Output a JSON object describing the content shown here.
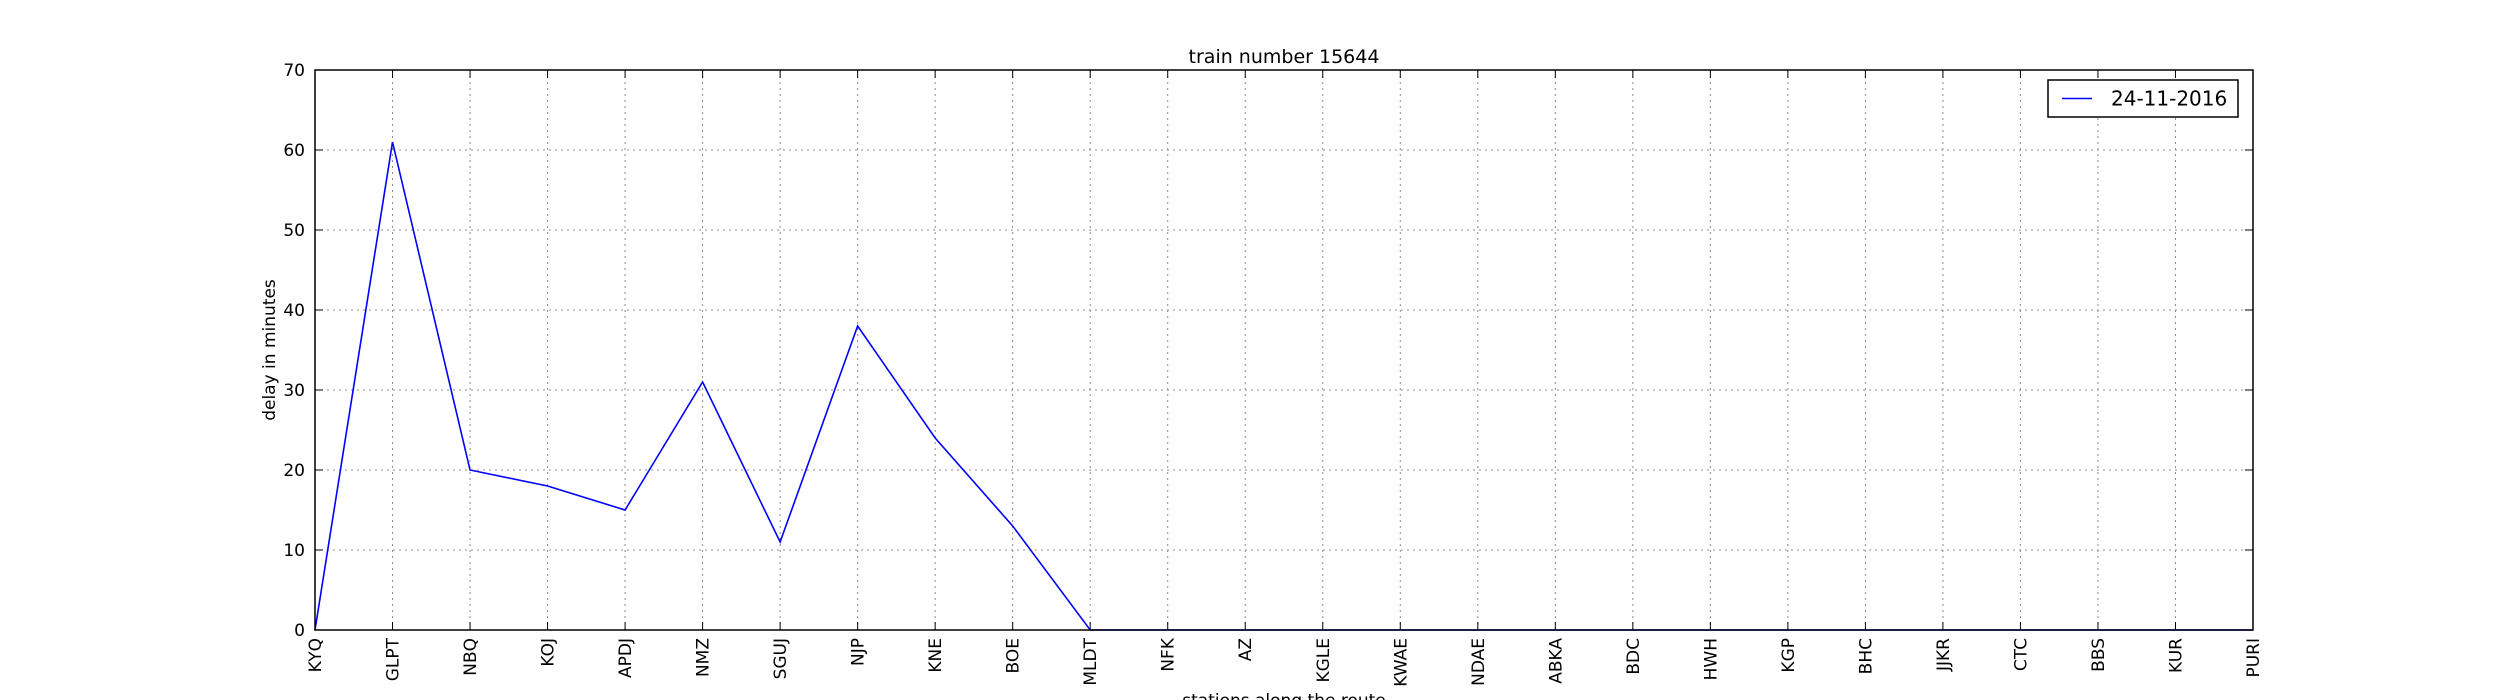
{
  "chart_data": {
    "type": "line",
    "title": "train number 15644",
    "xlabel": "stations along the route",
    "ylabel": "delay in minutes",
    "categories": [
      "KYQ",
      "GLPT",
      "NBQ",
      "KOJ",
      "APDJ",
      "NMZ",
      "SGUJ",
      "NJP",
      "KNE",
      "BOE",
      "MLDT",
      "NFK",
      "AZ",
      "KGLE",
      "KWAE",
      "NDAE",
      "ABKA",
      "BDC",
      "HWH",
      "KGP",
      "BHC",
      "JJKR",
      "CTC",
      "BBS",
      "KUR",
      "PURI"
    ],
    "series": [
      {
        "name": "24-11-2016",
        "color": "#0000ff",
        "values": [
          0,
          61,
          20,
          18,
          15,
          31,
          11,
          38,
          24,
          13,
          0,
          0,
          0,
          0,
          0,
          0,
          0,
          0,
          0,
          0,
          0,
          0,
          0,
          0,
          0,
          0
        ]
      }
    ],
    "ylim": [
      0,
      70
    ],
    "yticks": [
      0,
      10,
      20,
      30,
      40,
      50,
      60,
      70
    ],
    "grid": true,
    "legend_position": "top-right"
  }
}
